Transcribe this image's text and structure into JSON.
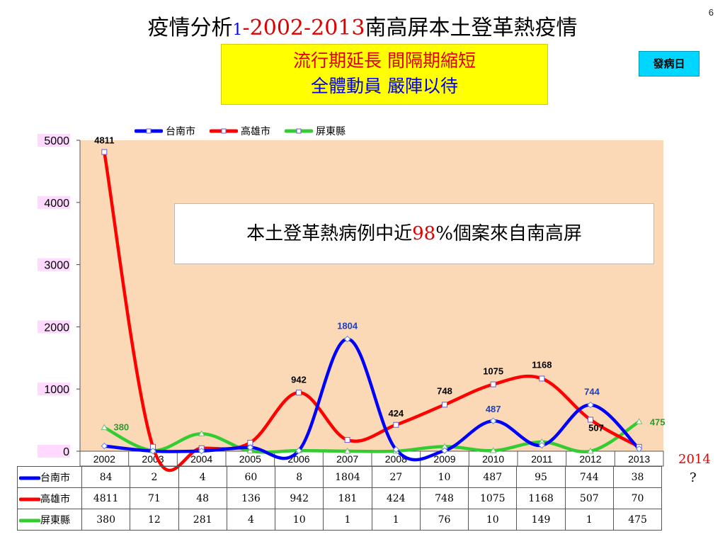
{
  "slide_number": "6",
  "title": {
    "part1": "疫情分析",
    "part2": "1",
    "part3": "-2002-2013",
    "part4": "南高屏本土登革熱疫情"
  },
  "banner": {
    "line1": "流行期延長 間隔期縮短",
    "line2": "全體動員 嚴陣以待"
  },
  "onset_box": "發病日",
  "callout": {
    "before": "本土登革熱病例中近",
    "pct": "98",
    "after": "%個案來自南高屏"
  },
  "side_note": {
    "year": "2014",
    "question": "?"
  },
  "chart_data": {
    "type": "line",
    "categories": [
      "2002",
      "2003",
      "2004",
      "2005",
      "2006",
      "2007",
      "2008",
      "2009",
      "2010",
      "2011",
      "2012",
      "2013"
    ],
    "yticks": [
      "0",
      "1000",
      "2000",
      "3000",
      "4000",
      "5000"
    ],
    "ylim": [
      0,
      5000
    ],
    "series": [
      {
        "name": "台南市",
        "color": "#0000ff",
        "values": [
          84,
          2,
          4,
          60,
          8,
          1804,
          27,
          10,
          487,
          95,
          744,
          38
        ]
      },
      {
        "name": "高雄市",
        "color": "#ff0000",
        "values": [
          4811,
          71,
          48,
          136,
          942,
          181,
          424,
          748,
          1075,
          1168,
          507,
          70
        ]
      },
      {
        "name": "屏東縣",
        "color": "#33cc33",
        "values": [
          380,
          12,
          281,
          4,
          10,
          1,
          1,
          76,
          10,
          149,
          1,
          475
        ]
      }
    ],
    "labels": [
      {
        "series": 1,
        "index": 0,
        "text": "4811",
        "color": "#000000"
      },
      {
        "series": 0,
        "index": 5,
        "text": "1804",
        "color": "#1f3fbf"
      },
      {
        "series": 1,
        "index": 4,
        "text": "942",
        "color": "#000000"
      },
      {
        "series": 1,
        "index": 6,
        "text": "424",
        "color": "#000000"
      },
      {
        "series": 1,
        "index": 7,
        "text": "748",
        "color": "#000000"
      },
      {
        "series": 0,
        "index": 8,
        "text": "487",
        "color": "#1f3fbf"
      },
      {
        "series": 1,
        "index": 8,
        "text": "1075",
        "color": "#000000"
      },
      {
        "series": 1,
        "index": 9,
        "text": "1168",
        "color": "#000000"
      },
      {
        "series": 0,
        "index": 10,
        "text": "744",
        "color": "#1f3fbf"
      },
      {
        "series": 1,
        "index": 10,
        "text": "507",
        "color": "#000000"
      },
      {
        "series": 2,
        "index": 0,
        "text": "380",
        "color": "#2e9a2e"
      },
      {
        "series": 2,
        "index": 11,
        "text": "475",
        "color": "#2e9a2e"
      }
    ],
    "plot_background": "#fcd9b6"
  }
}
